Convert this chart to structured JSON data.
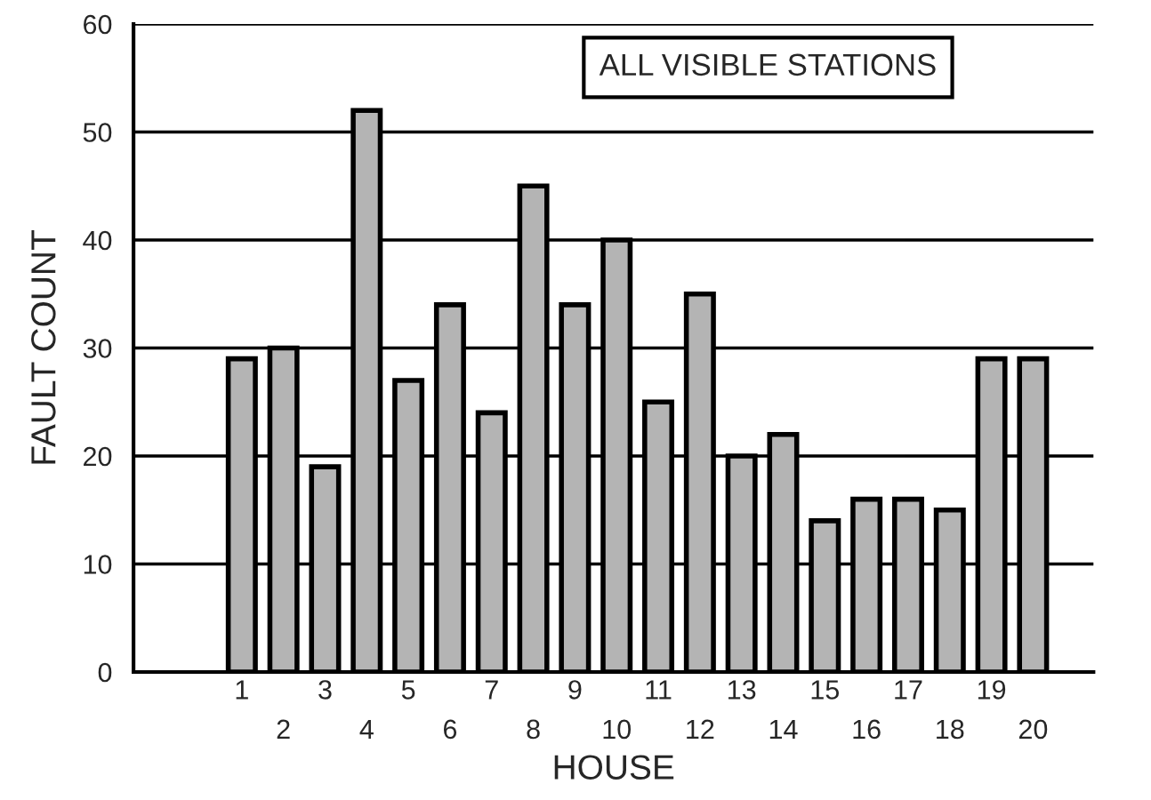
{
  "chart_data": {
    "type": "bar",
    "title": "ALL VISIBLE STATIONS",
    "xlabel": "HOUSE",
    "ylabel": "FAULT COUNT",
    "categories": [
      "1",
      "2",
      "3",
      "4",
      "5",
      "6",
      "7",
      "8",
      "9",
      "10",
      "11",
      "12",
      "13",
      "14",
      "15",
      "16",
      "17",
      "18",
      "19",
      "20"
    ],
    "values": [
      29,
      30,
      19,
      52,
      27,
      34,
      24,
      45,
      34,
      40,
      25,
      35,
      20,
      22,
      14,
      16,
      16,
      15,
      29,
      29
    ],
    "color": "#b4b4b4",
    "ylim": [
      0,
      60
    ],
    "yticks": [
      0,
      10,
      20,
      30,
      40,
      50,
      60
    ],
    "grid": "y"
  }
}
